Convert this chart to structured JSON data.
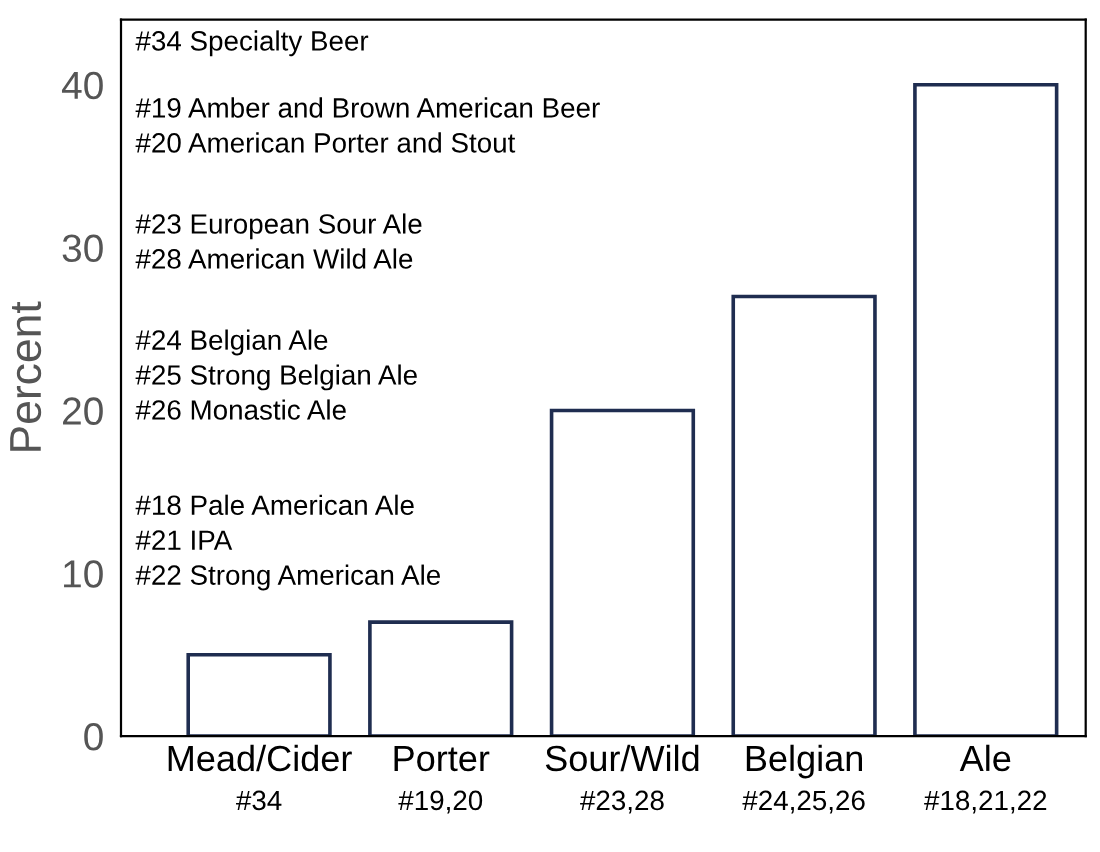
{
  "chart_data": {
    "type": "bar",
    "ylabel": "Percent",
    "categories": [
      "Mead/Cider\n#34",
      "Porter\n#19,20",
      "Sour/Wild\n#23,28",
      "Belgian\n#24,25,26",
      "Ale\n#18,21,22"
    ],
    "values": [
      5,
      7,
      20,
      27,
      40
    ],
    "color": "#1f2d50",
    "ylim": [
      0,
      44
    ],
    "yticks": [
      0,
      10,
      20,
      30,
      40
    ],
    "grid": false,
    "legend": false,
    "annotations": [
      "#34 Specialty Beer",
      "#19 Amber and Brown American Beer\n#20 American Porter and Stout",
      "#23 European Sour Ale\n#28 American Wild Ale",
      "#24 Belgian Ale\n#25 Strong Belgian Ale\n#26 Monastic Ale",
      "#18 Pale American Ale\n#21 IPA\n#22 Strong American Ale"
    ]
  }
}
